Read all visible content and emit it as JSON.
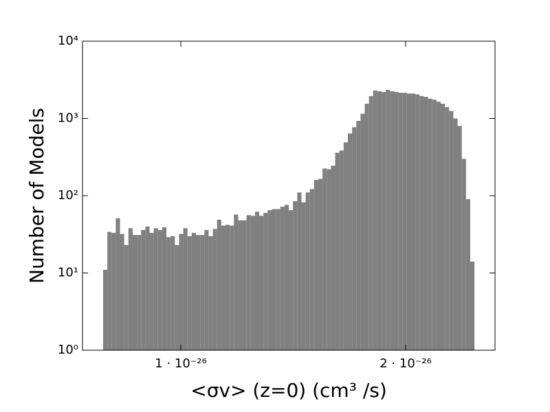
{
  "chart_data": {
    "type": "histogram",
    "xlabel": "<σv> (z=0) (cm³ /s)",
    "ylabel": "Number of Models",
    "color": "#808080",
    "ylog": true,
    "xlim": [
      5.627e-27,
      2.3976e-26
    ],
    "ylim": [
      1,
      10000
    ],
    "xticks": [
      {
        "value": 1e-26,
        "label": "1 · 10⁻²⁶"
      },
      {
        "value": 2e-26,
        "label": "2 · 10⁻²⁶"
      }
    ],
    "yticks": [
      {
        "value": 1,
        "label": "10⁰"
      },
      {
        "value": 10,
        "label": "10¹"
      },
      {
        "value": 100,
        "label": "10²"
      },
      {
        "value": 1000,
        "label": "10³"
      },
      {
        "value": 10000,
        "label": "10⁴"
      }
    ],
    "bins": [
      6.544e-27,
      6.7317e-27,
      6.9194e-27,
      7.1071e-27,
      7.2948e-27,
      7.4825e-27,
      7.6702e-27,
      7.8579e-27,
      8.0456e-27,
      8.2333e-27,
      8.421e-27,
      8.6087e-27,
      8.7964e-27,
      8.9841e-27,
      9.1718e-27,
      9.3595e-27,
      9.5472e-27,
      9.7349e-27,
      9.9226e-27,
      1.01103e-26,
      1.0298e-26,
      1.04857e-26,
      1.06734e-26,
      1.08611e-26,
      1.10488e-26,
      1.12365e-26,
      1.14242e-26,
      1.16119e-26,
      1.17996e-26,
      1.19873e-26,
      1.2175e-26,
      1.23627e-26,
      1.25504e-26,
      1.27381e-26,
      1.29258e-26,
      1.31135e-26,
      1.33012e-26,
      1.34889e-26,
      1.36766e-26,
      1.38643e-26,
      1.4052e-26,
      1.42397e-26,
      1.44274e-26,
      1.46151e-26,
      1.48028e-26,
      1.49905e-26,
      1.51782e-26,
      1.53659e-26,
      1.55536e-26,
      1.57413e-26,
      1.5929e-26,
      1.61167e-26,
      1.63044e-26,
      1.64921e-26,
      1.66798e-26,
      1.68675e-26,
      1.70552e-26,
      1.72429e-26,
      1.74306e-26,
      1.76183e-26,
      1.7806e-26,
      1.79937e-26,
      1.81814e-26,
      1.83691e-26,
      1.85568e-26,
      1.87445e-26,
      1.89322e-26,
      1.91199e-26,
      1.93076e-26,
      1.94953e-26,
      1.9683e-26,
      1.98707e-26,
      2.00584e-26,
      2.02461e-26,
      2.04338e-26,
      2.06215e-26,
      2.08092e-26,
      2.09969e-26,
      2.11846e-26,
      2.13723e-26,
      2.156e-26,
      2.17477e-26,
      2.19354e-26,
      2.21231e-26,
      2.23108e-26,
      2.24985e-26,
      2.26862e-26,
      2.28739e-26,
      2.30616e-26
    ],
    "values": [
      11,
      34,
      33,
      51,
      32,
      23,
      38,
      31,
      31,
      36,
      40,
      33,
      38,
      36,
      39,
      29,
      30,
      23,
      32,
      38,
      30,
      33,
      31,
      31,
      36,
      30,
      37,
      49,
      41,
      42,
      41,
      57,
      48,
      48,
      56,
      55,
      62,
      55,
      60,
      65,
      67,
      67,
      72,
      76,
      65,
      85,
      110,
      82,
      110,
      122,
      160,
      165,
      225,
      220,
      245,
      360,
      385,
      490,
      640,
      770,
      930,
      1150,
      1550,
      1950,
      2300,
      2250,
      2200,
      2350,
      2250,
      2200,
      2150,
      2150,
      2100,
      2100,
      2050,
      1950,
      1900,
      1800,
      1750,
      1650,
      1550,
      1400,
      1250,
      1000,
      800,
      300,
      90,
      14
    ]
  }
}
